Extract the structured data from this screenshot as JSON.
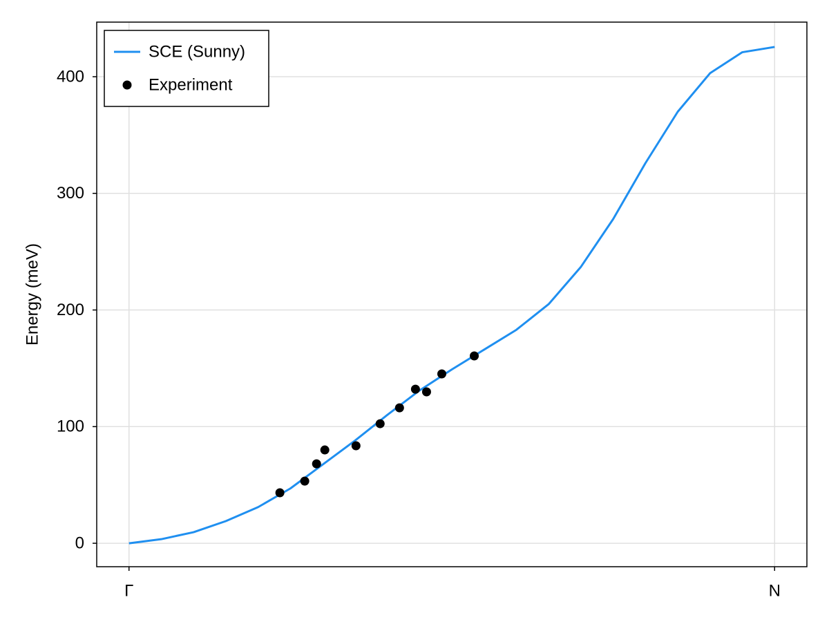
{
  "chart_data": {
    "type": "line",
    "ylabel": "Energy (meV)",
    "xlim": [
      -0.05,
      1.05
    ],
    "xticks": [
      {
        "value": 0,
        "label": "Γ"
      },
      {
        "value": 1,
        "label": "N"
      }
    ],
    "ylim": [
      -20.1,
      446.8
    ],
    "yticks": [
      0,
      100,
      200,
      300,
      400
    ],
    "grid": true,
    "legend": "top-left",
    "series": [
      {
        "name": "SCE (Sunny)",
        "type": "line",
        "color": "#1f8ff0",
        "x": [
          0,
          0.05,
          0.1,
          0.15,
          0.2,
          0.25,
          0.3,
          0.35,
          0.4,
          0.45,
          0.5,
          0.55,
          0.6,
          0.65,
          0.7,
          0.75,
          0.8,
          0.85,
          0.9,
          0.95,
          1.0
        ],
        "values": [
          0,
          3.5,
          9.5,
          19,
          31,
          47,
          67.5,
          88,
          110,
          131,
          149,
          166,
          183,
          205,
          237,
          278,
          326,
          370,
          403,
          421,
          425.5
        ]
      },
      {
        "name": "Experiment",
        "type": "scatter",
        "color": "#000000",
        "x": [
          0.2337,
          0.2722,
          0.2905,
          0.3033,
          0.3516,
          0.389,
          0.419,
          0.4437,
          0.4609,
          0.4845,
          0.5348
        ],
        "values": [
          43.3,
          53.3,
          68.1,
          80,
          83.6,
          102.5,
          116.1,
          132.1,
          129.8,
          145.2,
          160.6
        ]
      }
    ]
  }
}
